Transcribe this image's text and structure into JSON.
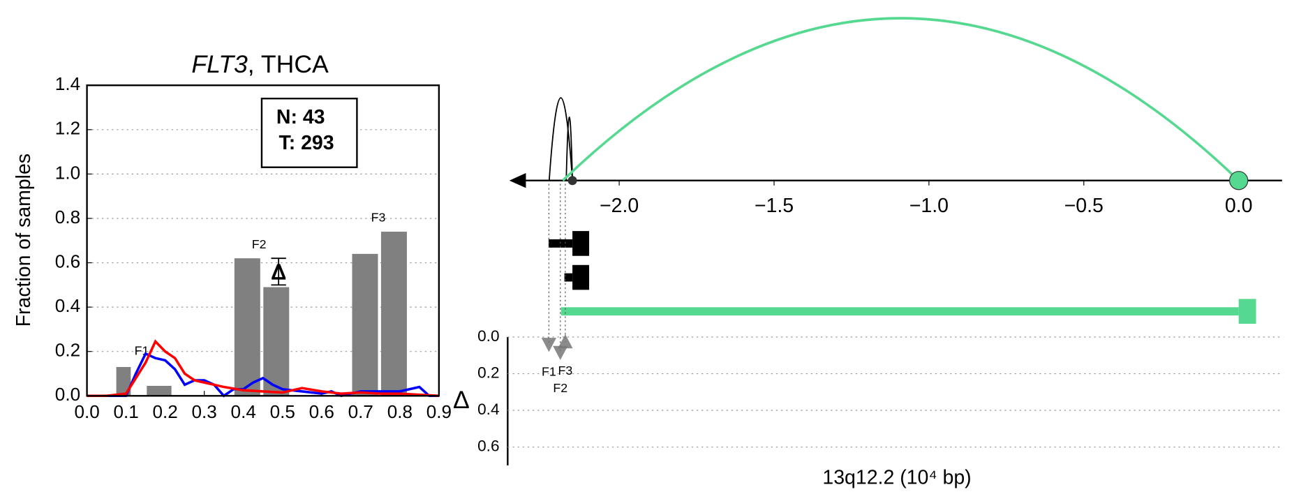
{
  "chart_data": [
    {
      "type": "bar",
      "title_gene": "FLT3",
      "title_rest": ", THCA",
      "ylabel": "Fraction of samples",
      "xlim": [
        0,
        0.9
      ],
      "xticks": [
        {
          "value": 0,
          "label": "0.0"
        },
        0.1,
        0.2,
        0.3,
        0.4,
        0.5,
        0.6,
        0.7,
        0.8,
        0.9
      ],
      "ylim": [
        0,
        1.4
      ],
      "yticks": [
        {
          "value": 0,
          "label": "0.0"
        },
        0.2,
        0.4,
        0.6,
        0.8,
        {
          "value": 1,
          "label": "1.0"
        },
        1.2,
        1.4
      ],
      "grid": true,
      "bars": {
        "color": "#808080",
        "x0": [
          0.075,
          0.153,
          0.377,
          0.451,
          0.678,
          0.752
        ],
        "x1": [
          0.112,
          0.216,
          0.443,
          0.517,
          0.744,
          0.818
        ],
        "values": [
          0.13,
          0.045,
          0.62,
          0.49,
          0.64,
          0.74
        ]
      },
      "annotations": [
        {
          "text": "F1",
          "x": 0.14,
          "y": 0.2
        },
        {
          "text": "F2",
          "x": 0.44,
          "y": 0.68
        },
        {
          "text": "F3",
          "x": 0.745,
          "y": 0.8
        }
      ],
      "error_bar": {
        "label": "Δ",
        "x": 0.49,
        "low": 0.5,
        "high": 0.62
      },
      "counts": [
        "N: 43",
        "T: 293"
      ],
      "series": [
        {
          "color": "#0000ff",
          "x": [
            0,
            0.1,
            0.125,
            0.15,
            0.175,
            0.2,
            0.225,
            0.25,
            0.275,
            0.3,
            0.325,
            0.35,
            0.375,
            0.4,
            0.425,
            0.45,
            0.475,
            0.5,
            0.55,
            0.6,
            0.625,
            0.65,
            0.7,
            0.75,
            0.8,
            0.85,
            0.875,
            0.9
          ],
          "values": [
            0,
            0,
            0.1,
            0.19,
            0.17,
            0.16,
            0.12,
            0.05,
            0.07,
            0.07,
            0.05,
            0,
            0.03,
            0.03,
            0.06,
            0.08,
            0.05,
            0.03,
            0.02,
            0.01,
            0.02,
            0,
            0.02,
            0.02,
            0.02,
            0.04,
            0,
            0
          ]
        },
        {
          "color": "#ff0000",
          "x": [
            0,
            0.05,
            0.1,
            0.15,
            0.175,
            0.2,
            0.225,
            0.25,
            0.275,
            0.3,
            0.35,
            0.4,
            0.45,
            0.5,
            0.55,
            0.6,
            0.65,
            0.7,
            0.75,
            0.8,
            0.85,
            0.9
          ],
          "values": [
            0,
            0,
            0.01,
            0.15,
            0.245,
            0.2,
            0.17,
            0.1,
            0.07,
            0.06,
            0.04,
            0.025,
            0.02,
            0.015,
            0.035,
            0.02,
            0.01,
            0.015,
            0.01,
            0.01,
            0.005,
            0
          ]
        }
      ]
    },
    {
      "type": "genome",
      "xlabel": "13q12.2 (10⁴ bp)",
      "xlim": [
        -2.36,
        0.14
      ],
      "xticks": [
        {
          "value": -2,
          "label": "−2.0"
        },
        {
          "value": -1.5,
          "label": "−1.5"
        },
        {
          "value": -1,
          "label": "−1.0"
        },
        {
          "value": -0.5,
          "label": "−0.5"
        },
        {
          "value": 0,
          "label": "0.0"
        }
      ],
      "arcs": [
        {
          "x0": -2.226,
          "x1": -2.151,
          "color": "#000000"
        },
        {
          "x0": -2.171,
          "x1": -2.151,
          "color": "#000000"
        },
        {
          "x0": -2.182,
          "x1": 0,
          "color": "#55d88f"
        }
      ],
      "points": [
        {
          "x": -2.151,
          "color": "#333333"
        },
        {
          "x": 0,
          "color": "#55d88f"
        }
      ],
      "tracks": [
        {
          "x0": -2.228,
          "x1": -2.151,
          "box0": -2.151,
          "box1": -2.097,
          "color": "#000000"
        },
        {
          "x0": -2.177,
          "x1": -2.151,
          "box0": -2.151,
          "box1": -2.097,
          "color": "#000000"
        },
        {
          "x0": -2.188,
          "x1": 0,
          "box0": 0,
          "box1": 0.056,
          "color": "#55d88f"
        }
      ],
      "delta": {
        "ylabel": "Δ",
        "ylim": [
          0,
          0.7
        ],
        "yticks": [
          {
            "value": 0,
            "label": "0.0"
          },
          0.2,
          0.4,
          0.6
        ],
        "markers": [
          {
            "label": "F1",
            "x": -2.227,
            "y": 0.036,
            "shape": "down"
          },
          {
            "label": "F2",
            "x": -2.19,
            "y": 0.08,
            "shape": "down"
          },
          {
            "label": "F3",
            "x": -2.174,
            "y": 0.03,
            "shape": "up"
          }
        ]
      }
    }
  ]
}
